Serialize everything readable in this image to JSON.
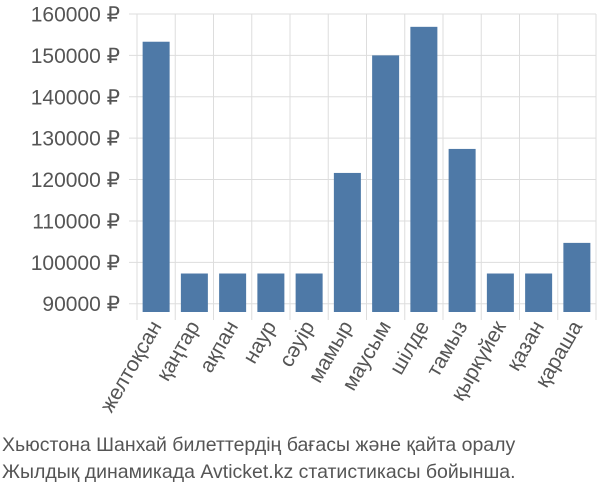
{
  "chart_data": {
    "type": "bar",
    "categories": [
      "желтоқсан",
      "қаңтар",
      "ақпан",
      "наур",
      "сәуір",
      "мамыр",
      "маусым",
      "шілде",
      "тамыз",
      "қыркүйек",
      "қазан",
      "қараша"
    ],
    "series": [
      {
        "values": [
          153300,
          97300,
          97300,
          97300,
          97300,
          121600,
          150000,
          156900,
          127400,
          97300,
          97300,
          104700
        ]
      }
    ],
    "yticks": [
      "90000 ₽",
      "100000 ₽",
      "110000 ₽",
      "120000 ₽",
      "130000 ₽",
      "140000 ₽",
      "150000 ₽",
      "160000 ₽"
    ],
    "ytick_values": [
      90000,
      100000,
      110000,
      120000,
      130000,
      140000,
      150000,
      160000
    ],
    "ylim": [
      88000,
      160000
    ],
    "grid": true,
    "legend": "none",
    "bar_color": "#4e79a7",
    "title": "",
    "xlabel": "",
    "ylabel": ""
  },
  "caption": {
    "line1": "Хьюстона Шанхай билеттердің бағасы және қайта оралу",
    "line2": "Жылдық динамикада Avticket.kz статистикасы бойынша."
  }
}
